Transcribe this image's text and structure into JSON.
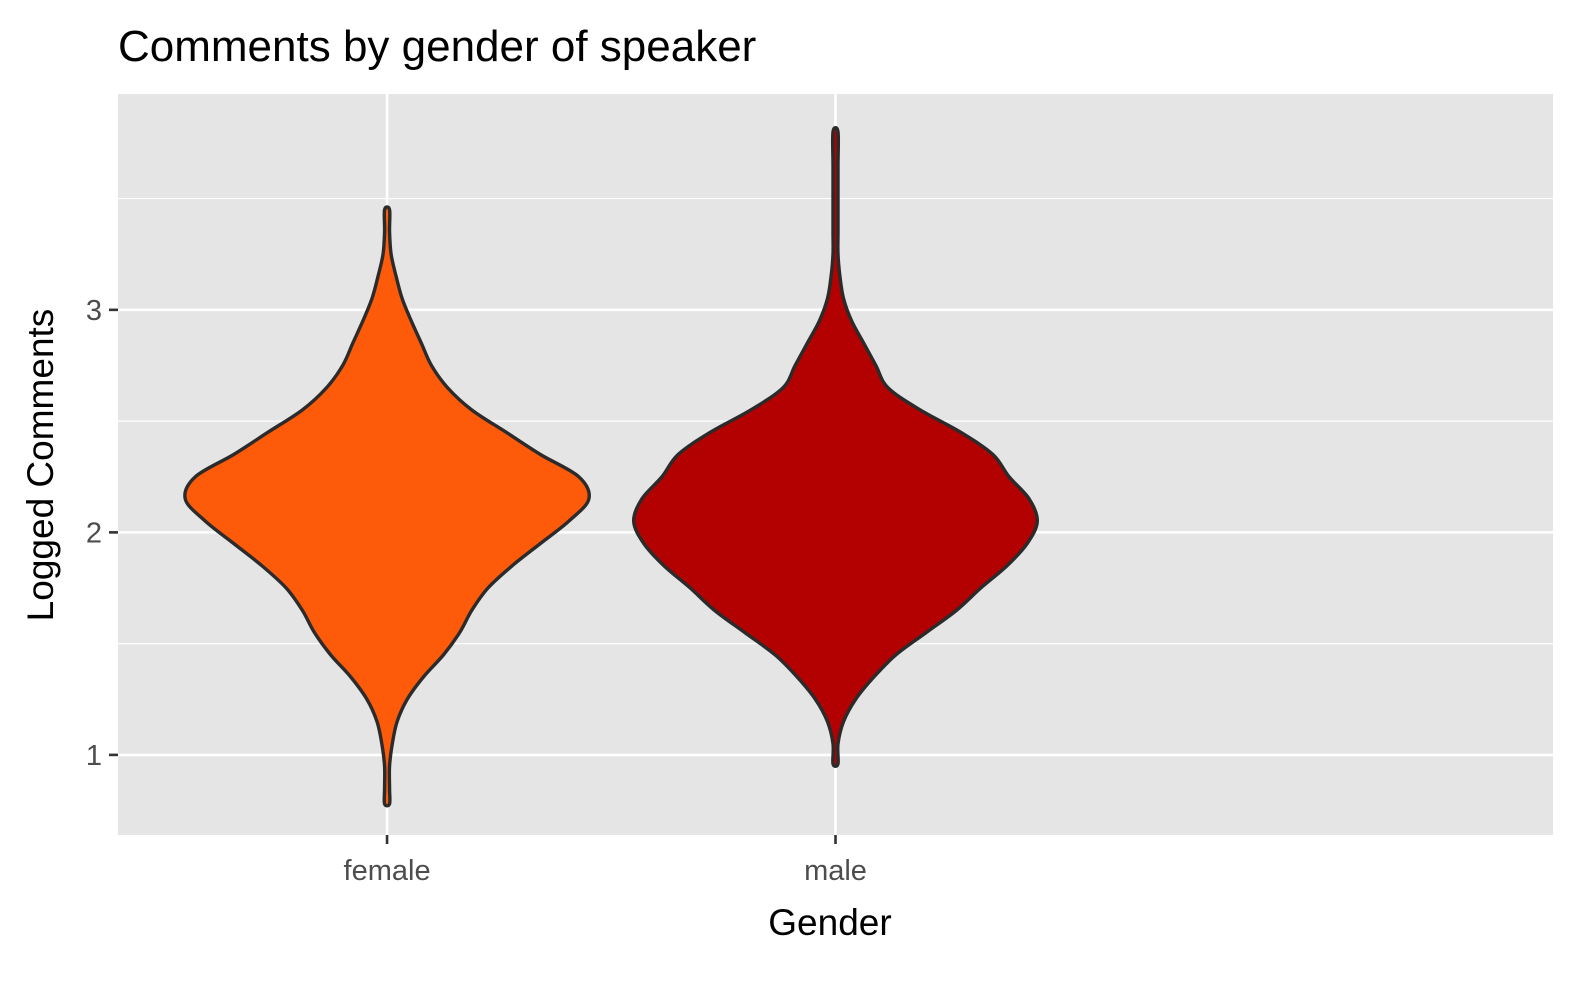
{
  "chart_data": {
    "type": "violin",
    "title": "Comments by gender of speaker",
    "xlabel": "Gender",
    "ylabel": "Logged Comments",
    "categories": [
      "female",
      "male"
    ],
    "ylim": [
      0.64,
      3.97
    ],
    "yticks": [
      1,
      2,
      3
    ],
    "grid": true,
    "legend": "none",
    "background_color": "#e5e5e5",
    "grid_color": "#ffffff",
    "outline_color": "#2b2b2b",
    "series": [
      {
        "category": "female",
        "color": "#fd5a0a",
        "min": 0.78,
        "max": 3.45,
        "profile": [
          [
            0.78,
            0.003
          ],
          [
            0.85,
            0.005
          ],
          [
            0.95,
            0.012
          ],
          [
            1.05,
            0.026
          ],
          [
            1.15,
            0.05
          ],
          [
            1.25,
            0.1
          ],
          [
            1.35,
            0.18
          ],
          [
            1.45,
            0.28
          ],
          [
            1.55,
            0.36
          ],
          [
            1.65,
            0.42
          ],
          [
            1.75,
            0.5
          ],
          [
            1.85,
            0.62
          ],
          [
            1.95,
            0.76
          ],
          [
            2.05,
            0.9
          ],
          [
            2.15,
            1.0
          ],
          [
            2.25,
            0.95
          ],
          [
            2.35,
            0.76
          ],
          [
            2.45,
            0.59
          ],
          [
            2.55,
            0.42
          ],
          [
            2.65,
            0.3
          ],
          [
            2.75,
            0.22
          ],
          [
            2.85,
            0.17
          ],
          [
            2.95,
            0.12
          ],
          [
            3.05,
            0.075
          ],
          [
            3.15,
            0.045
          ],
          [
            3.25,
            0.02
          ],
          [
            3.35,
            0.011
          ],
          [
            3.45,
            0.011
          ]
        ]
      },
      {
        "category": "male",
        "color": "#b30000",
        "min": 0.96,
        "max": 3.8,
        "profile": [
          [
            0.96,
            0.003
          ],
          [
            1.05,
            0.01
          ],
          [
            1.15,
            0.04
          ],
          [
            1.25,
            0.1
          ],
          [
            1.35,
            0.19
          ],
          [
            1.45,
            0.3
          ],
          [
            1.55,
            0.45
          ],
          [
            1.65,
            0.6
          ],
          [
            1.75,
            0.72
          ],
          [
            1.85,
            0.85
          ],
          [
            1.95,
            0.95
          ],
          [
            2.05,
            1.0
          ],
          [
            2.15,
            0.96
          ],
          [
            2.25,
            0.86
          ],
          [
            2.35,
            0.78
          ],
          [
            2.45,
            0.62
          ],
          [
            2.55,
            0.42
          ],
          [
            2.65,
            0.26
          ],
          [
            2.75,
            0.2
          ],
          [
            2.85,
            0.14
          ],
          [
            2.95,
            0.08
          ],
          [
            3.05,
            0.04
          ],
          [
            3.15,
            0.022
          ],
          [
            3.25,
            0.012
          ],
          [
            3.35,
            0.007
          ],
          [
            3.5,
            0.004
          ],
          [
            3.65,
            0.003
          ],
          [
            3.8,
            0.003
          ]
        ]
      }
    ]
  }
}
